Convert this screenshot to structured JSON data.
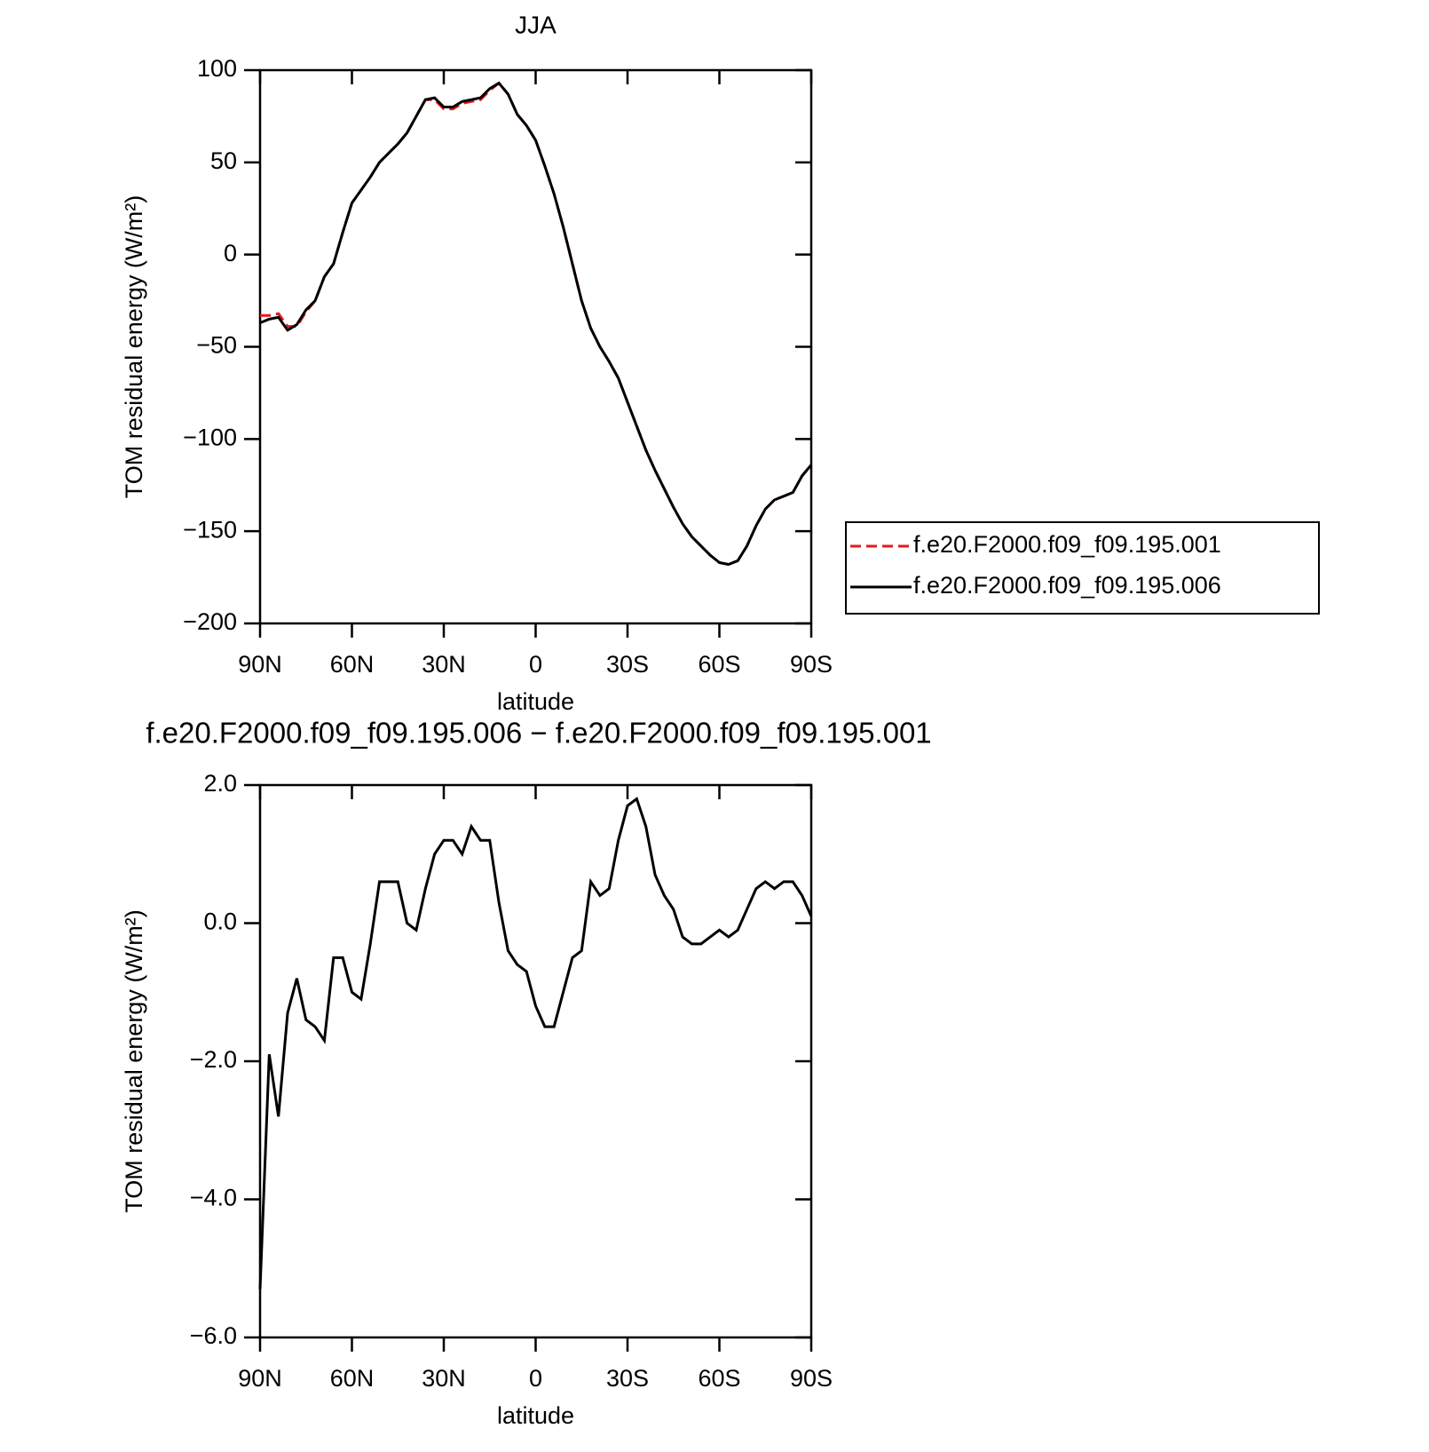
{
  "chart_data": [
    {
      "type": "line",
      "title": "JJA",
      "xlabel": "latitude",
      "ylabel": "TOM residual energy (W/m²)",
      "x": [
        90,
        87,
        84,
        81,
        78,
        75,
        72,
        69,
        66,
        63,
        60,
        57,
        54,
        51,
        48,
        45,
        42,
        39,
        36,
        33,
        30,
        27,
        24,
        21,
        18,
        15,
        12,
        9,
        6,
        3,
        0,
        -3,
        -6,
        -9,
        -12,
        -15,
        -18,
        -21,
        -24,
        -27,
        -30,
        -33,
        -36,
        -39,
        -42,
        -45,
        -48,
        -51,
        -54,
        -57,
        -60,
        -63,
        -66,
        -69,
        -72,
        -75,
        -78,
        -81,
        -84,
        -87,
        -90
      ],
      "xlim": [
        90,
        -90
      ],
      "xticks": [
        {
          "value": 90,
          "label": "90N"
        },
        {
          "value": 60,
          "label": "60N"
        },
        {
          "value": 30,
          "label": "30N"
        },
        0,
        {
          "value": -30,
          "label": "30S"
        },
        {
          "value": -60,
          "label": "60S"
        },
        {
          "value": -90,
          "label": "90S"
        }
      ],
      "ylim": [
        -200,
        100
      ],
      "yticks": [
        100,
        50,
        0,
        {
          "value": -50,
          "label": "−50"
        },
        {
          "value": -100,
          "label": "−100"
        },
        {
          "value": -150,
          "label": "−150"
        },
        {
          "value": -200,
          "label": "−200"
        }
      ],
      "legend": "right",
      "series": [
        {
          "name": "f.e20.F2000.f09_f09.195.001",
          "color": "#e31a1c",
          "dash": "dashed",
          "values": [
            -33,
            -33,
            -32,
            -39,
            -39,
            -31,
            -25,
            -12,
            -5,
            12,
            28,
            35,
            42,
            50,
            55,
            60,
            66,
            75,
            84,
            84,
            79,
            79,
            82,
            83,
            84,
            89,
            93,
            87,
            76,
            70,
            62,
            48,
            33,
            15,
            -5,
            -25,
            -40,
            -50,
            -58,
            -67,
            -80,
            -93,
            -106,
            -117,
            -127,
            -137,
            -146,
            -153,
            -158,
            -163,
            -167,
            -168,
            -166,
            -158,
            -147,
            -138,
            -133,
            -131,
            -129,
            -120,
            -114
          ]
        },
        {
          "name": "f.e20.F2000.f09_f09.195.006",
          "color": "#000000",
          "dash": "solid",
          "values": [
            -37,
            -35,
            -34,
            -41,
            -38,
            -30,
            -25,
            -12,
            -5,
            12,
            28,
            35,
            42,
            50,
            55,
            60,
            66,
            75,
            84,
            85,
            80,
            80,
            83,
            84,
            85,
            90,
            93,
            87,
            76,
            70,
            62,
            48,
            33,
            15,
            -5,
            -25,
            -40,
            -50,
            -58,
            -67,
            -80,
            -93,
            -106,
            -117,
            -127,
            -137,
            -146,
            -153,
            -158,
            -163,
            -167,
            -168,
            -166,
            -158,
            -147,
            -138,
            -133,
            -131,
            -129,
            -120,
            -114
          ]
        }
      ]
    },
    {
      "type": "line",
      "title": "f.e20.F2000.f09_f09.195.006 − f.e20.F2000.f09_f09.195.001",
      "xlabel": "latitude",
      "ylabel": "TOM residual energy (W/m²)",
      "x": [
        90,
        87,
        84,
        81,
        78,
        75,
        72,
        69,
        66,
        63,
        60,
        57,
        54,
        51,
        48,
        45,
        42,
        39,
        36,
        33,
        30,
        27,
        24,
        21,
        18,
        15,
        12,
        9,
        6,
        3,
        0,
        -3,
        -6,
        -9,
        -12,
        -15,
        -18,
        -21,
        -24,
        -27,
        -30,
        -33,
        -36,
        -39,
        -42,
        -45,
        -48,
        -51,
        -54,
        -57,
        -60,
        -63,
        -66,
        -69,
        -72,
        -75,
        -78,
        -81,
        -84,
        -87,
        -90
      ],
      "xlim": [
        90,
        -90
      ],
      "xticks": [
        {
          "value": 90,
          "label": "90N"
        },
        {
          "value": 60,
          "label": "60N"
        },
        {
          "value": 30,
          "label": "30N"
        },
        0,
        {
          "value": -30,
          "label": "30S"
        },
        {
          "value": -60,
          "label": "60S"
        },
        {
          "value": -90,
          "label": "90S"
        }
      ],
      "ylim": [
        -6,
        2
      ],
      "yticks": [
        {
          "value": 2,
          "label": "2.0"
        },
        {
          "value": 0,
          "label": "0.0"
        },
        {
          "value": -2,
          "label": "−2.0"
        },
        {
          "value": -4,
          "label": "−4.0"
        },
        {
          "value": -6,
          "label": "−6.0"
        }
      ],
      "series": [
        {
          "color": "#000000",
          "dash": "solid",
          "values": [
            -5.3,
            -1.9,
            -2.8,
            -1.3,
            -0.8,
            -1.4,
            -1.5,
            -1.7,
            -0.5,
            -0.5,
            -1.0,
            -1.1,
            -0.3,
            0.6,
            0.6,
            0.6,
            0.0,
            -0.1,
            0.5,
            1.0,
            1.2,
            1.2,
            1.0,
            1.4,
            1.2,
            1.2,
            0.3,
            -0.4,
            -0.6,
            -0.7,
            -1.2,
            -1.5,
            -1.5,
            -1.0,
            -0.5,
            -0.4,
            0.6,
            0.4,
            0.5,
            1.2,
            1.7,
            1.8,
            1.4,
            0.7,
            0.4,
            0.2,
            -0.2,
            -0.3,
            -0.3,
            -0.2,
            -0.1,
            -0.2,
            -0.1,
            0.2,
            0.5,
            0.6,
            0.5,
            0.6,
            0.6,
            0.4,
            0.1
          ]
        }
      ]
    }
  ]
}
